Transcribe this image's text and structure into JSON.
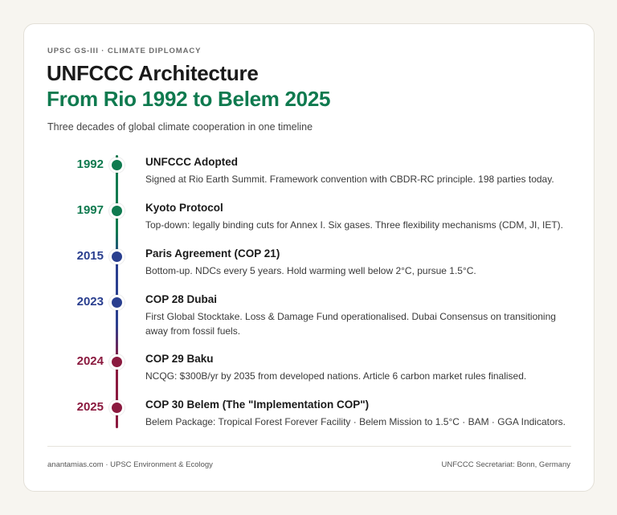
{
  "header": {
    "eyebrow": "UPSC GS-III · CLIMATE DIPLOMACY",
    "title_line1": "UNFCCC Architecture",
    "title_line2": "From Rio 1992 to Belem 2025",
    "subtitle": "Three decades of global climate cooperation in one timeline"
  },
  "colors": {
    "green": "#0f7a4f",
    "blue": "#2a3f8f",
    "crimson": "#8b1a3f"
  },
  "timeline": [
    {
      "year": "1992",
      "color": "#0f7a4f",
      "title": "UNFCCC Adopted",
      "description": "Signed at Rio Earth Summit. Framework convention with CBDR-RC principle. 198 parties today."
    },
    {
      "year": "1997",
      "color": "#0f7a4f",
      "title": "Kyoto Protocol",
      "description": "Top-down: legally binding cuts for Annex I. Six gases. Three flexibility mechanisms (CDM, JI, IET)."
    },
    {
      "year": "2015",
      "color": "#2a3f8f",
      "title": "Paris Agreement (COP 21)",
      "description": "Bottom-up. NDCs every 5 years. Hold warming well below 2°C, pursue 1.5°C."
    },
    {
      "year": "2023",
      "color": "#2a3f8f",
      "title": "COP 28 Dubai",
      "description": "First Global Stocktake. Loss & Damage Fund operationalised. Dubai Consensus on transitioning away from fossil fuels."
    },
    {
      "year": "2024",
      "color": "#8b1a3f",
      "title": "COP 29 Baku",
      "description": "NCQG: $300B/yr by 2035 from developed nations. Article 6 carbon market rules finalised."
    },
    {
      "year": "2025",
      "color": "#8b1a3f",
      "title": "COP 30 Belem (The \"Implementation COP\")",
      "description": "Belem Package: Tropical Forest Forever Facility · Belem Mission to 1.5°C · BAM · GGA Indicators."
    }
  ],
  "footer": {
    "left": "anantamias.com · UPSC Environment & Ecology",
    "right": "UNFCCC Secretariat: Bonn, Germany"
  }
}
